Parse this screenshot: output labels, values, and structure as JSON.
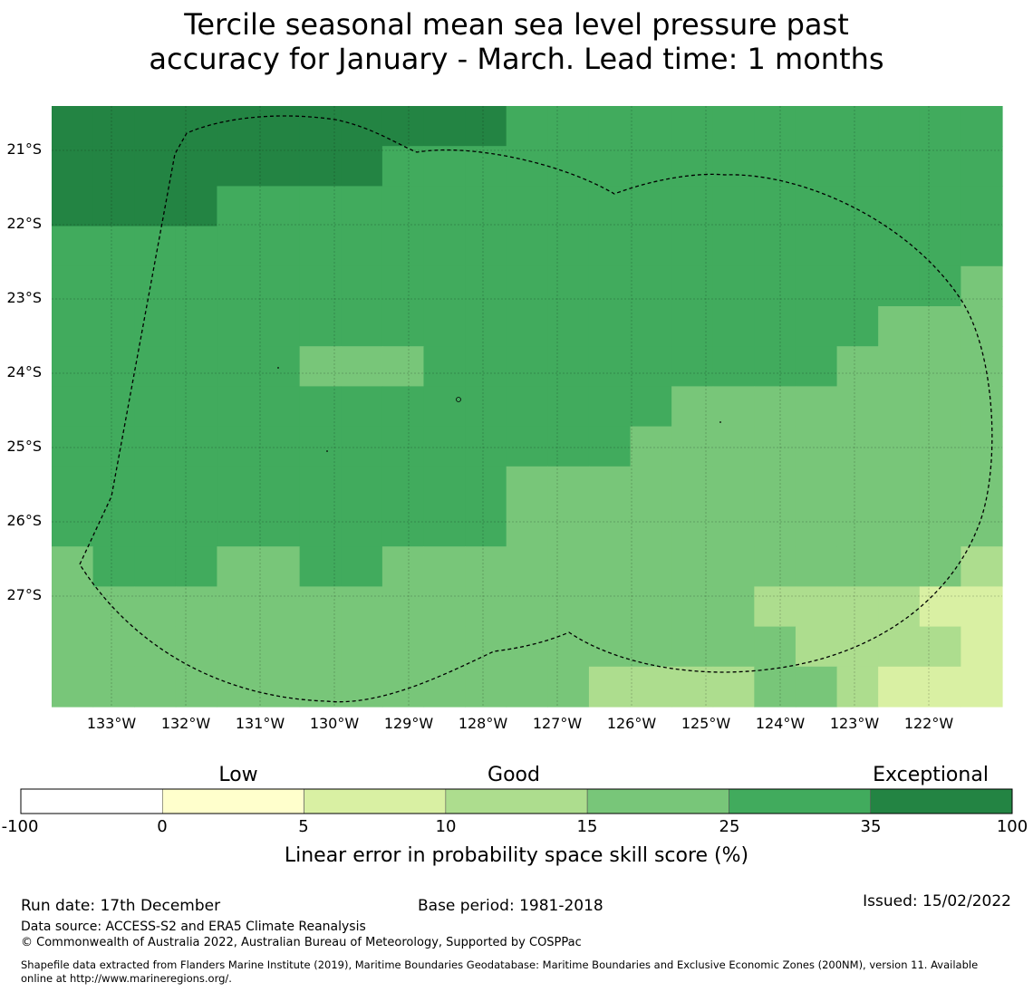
{
  "title_lines": [
    "Tercile seasonal mean sea level pressure past",
    "accuracy for January - March. Lead time: 1 months"
  ],
  "map": {
    "lat_ticks": [
      "21°S",
      "22°S",
      "23°S",
      "24°S",
      "25°S",
      "26°S",
      "27°S"
    ],
    "lon_ticks": [
      "133°W",
      "132°W",
      "131°W",
      "130°W",
      "129°W",
      "128°W",
      "127°W",
      "126°W",
      "125°W",
      "124°W",
      "123°W",
      "122°W"
    ],
    "boundary_style": "dashed black line (EEZ)",
    "grid": true
  },
  "colorbar": {
    "categories": [
      {
        "label": "Low",
        "center_bin": 1
      },
      {
        "label": "Good",
        "center_bin": 3
      },
      {
        "label": "Exceptional",
        "center_bin": 6
      }
    ],
    "bins": [
      {
        "from": -100,
        "to": 0,
        "color": "#ffffff"
      },
      {
        "from": 0,
        "to": 5,
        "color": "#ffffcc"
      },
      {
        "from": 5,
        "to": 10,
        "color": "#d9f0a3"
      },
      {
        "from": 10,
        "to": 15,
        "color": "#addd8e"
      },
      {
        "from": 15,
        "to": 25,
        "color": "#78c679"
      },
      {
        "from": 25,
        "to": 35,
        "color": "#41ab5d"
      },
      {
        "from": 35,
        "to": 100,
        "color": "#238443"
      }
    ],
    "tick_labels": [
      "-100",
      "0",
      "5",
      "10",
      "15",
      "25",
      "35",
      "100"
    ],
    "label": "Linear error in probability space skill score (%)"
  },
  "footer": {
    "run_date": "Run date: 17th December",
    "base_period": "Base period: 1981-2018",
    "issued": "Issued: 15/02/2022",
    "data_source": "Data source: ACCESS-S2 and ERA5 Climate Reanalysis",
    "copyright": "© Commonwealth of Australia 2022, Australian Bureau of Meteorology, Supported by COSPPac",
    "shapefile_line1": "Shapefile data extracted from Flanders Marine Institute (2019), Maritime Boundaries Geodatabase: Maritime Boundaries and Exclusive Economic Zones (200NM), version 11. Available",
    "shapefile_line2": "online at http://www.marineregions.org/."
  }
}
